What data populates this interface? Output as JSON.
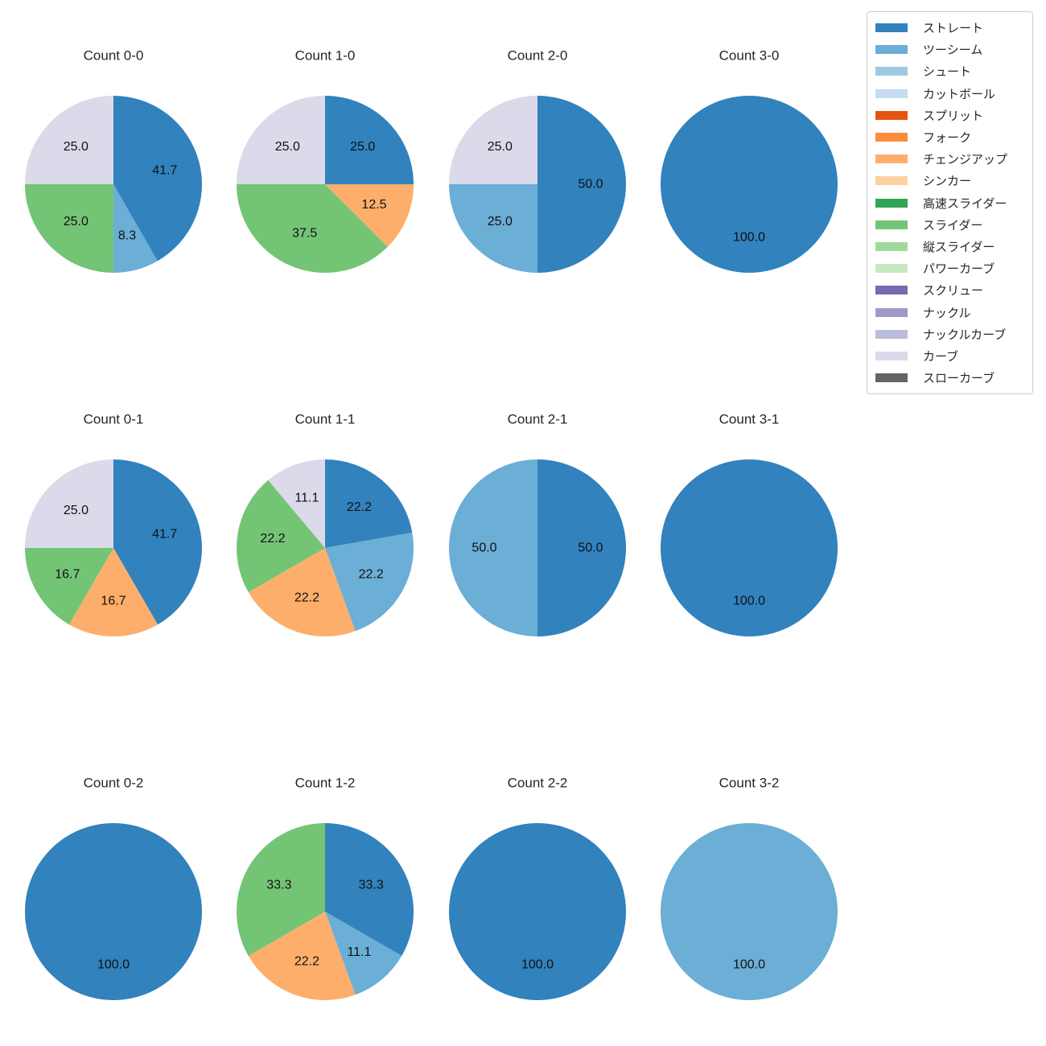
{
  "figure": {
    "background_color": "#ffffff",
    "text_color": "#262626"
  },
  "chart_data": {
    "type": "pie",
    "grid": {
      "rows": 3,
      "cols": 4
    },
    "legend_position": "upper right",
    "label_format": "one_decimal_percent",
    "start_angle": "top_clockwise",
    "palette": {
      "ストレート": "#3182bd",
      "ツーシーム": "#6baed6",
      "シュート": "#9ecae1",
      "カットボール": "#c6dbef",
      "スプリット": "#e6550d",
      "フォーク": "#fd8d3c",
      "チェンジアップ": "#fdae6b",
      "シンカー": "#fdd0a2",
      "高速スライダー": "#31a354",
      "スライダー": "#74c476",
      "縦スライダー": "#a1d99b",
      "パワーカーブ": "#c7e9c0",
      "スクリュー": "#756bb1",
      "ナックル": "#9e9ac8",
      "ナックルカーブ": "#bcbddc",
      "カーブ": "#dadaeb",
      "スローカーブ": "#636363"
    },
    "legend": [
      "ストレート",
      "ツーシーム",
      "シュート",
      "カットボール",
      "スプリット",
      "フォーク",
      "チェンジアップ",
      "シンカー",
      "高速スライダー",
      "スライダー",
      "縦スライダー",
      "パワーカーブ",
      "スクリュー",
      "ナックル",
      "ナックルカーブ",
      "カーブ",
      "スローカーブ"
    ],
    "pies": [
      {
        "title": "Count 0-0",
        "slices": [
          {
            "label": "ストレート",
            "value": 41.7
          },
          {
            "label": "ツーシーム",
            "value": 8.3
          },
          {
            "label": "スライダー",
            "value": 25.0
          },
          {
            "label": "カーブ",
            "value": 25.0
          }
        ]
      },
      {
        "title": "Count 1-0",
        "slices": [
          {
            "label": "ストレート",
            "value": 25.0
          },
          {
            "label": "チェンジアップ",
            "value": 12.5
          },
          {
            "label": "スライダー",
            "value": 37.5
          },
          {
            "label": "カーブ",
            "value": 25.0
          }
        ]
      },
      {
        "title": "Count 2-0",
        "slices": [
          {
            "label": "ストレート",
            "value": 50.0
          },
          {
            "label": "ツーシーム",
            "value": 25.0
          },
          {
            "label": "カーブ",
            "value": 25.0
          }
        ]
      },
      {
        "title": "Count 3-0",
        "slices": [
          {
            "label": "ストレート",
            "value": 100.0
          }
        ]
      },
      {
        "title": "Count 0-1",
        "slices": [
          {
            "label": "ストレート",
            "value": 41.7
          },
          {
            "label": "チェンジアップ",
            "value": 16.7
          },
          {
            "label": "スライダー",
            "value": 16.7
          },
          {
            "label": "カーブ",
            "value": 25.0
          }
        ]
      },
      {
        "title": "Count 1-1",
        "slices": [
          {
            "label": "ストレート",
            "value": 22.2
          },
          {
            "label": "ツーシーム",
            "value": 22.2
          },
          {
            "label": "チェンジアップ",
            "value": 22.2
          },
          {
            "label": "スライダー",
            "value": 22.2
          },
          {
            "label": "カーブ",
            "value": 11.1
          }
        ]
      },
      {
        "title": "Count 2-1",
        "slices": [
          {
            "label": "ストレート",
            "value": 50.0
          },
          {
            "label": "ツーシーム",
            "value": 50.0
          }
        ]
      },
      {
        "title": "Count 3-1",
        "slices": [
          {
            "label": "ストレート",
            "value": 100.0
          }
        ]
      },
      {
        "title": "Count 0-2",
        "slices": [
          {
            "label": "ストレート",
            "value": 100.0
          }
        ]
      },
      {
        "title": "Count 1-2",
        "slices": [
          {
            "label": "ストレート",
            "value": 33.3
          },
          {
            "label": "ツーシーム",
            "value": 11.1
          },
          {
            "label": "チェンジアップ",
            "value": 22.2
          },
          {
            "label": "スライダー",
            "value": 33.3
          }
        ]
      },
      {
        "title": "Count 2-2",
        "slices": [
          {
            "label": "ストレート",
            "value": 100.0
          }
        ]
      },
      {
        "title": "Count 3-2",
        "slices": [
          {
            "label": "ツーシーム",
            "value": 100.0
          }
        ]
      }
    ]
  }
}
